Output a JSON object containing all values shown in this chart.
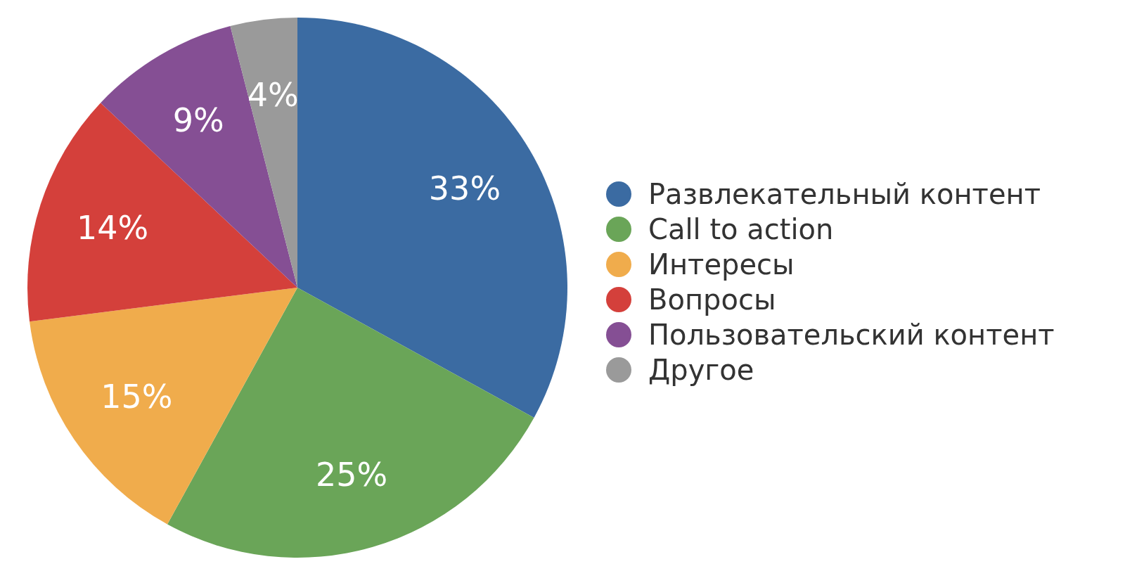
{
  "chart_data": {
    "type": "pie",
    "categories": [
      "Развлекательный контент",
      "Call to action",
      "Интересы",
      "Вопросы",
      "Пользовательский контент",
      "Другое"
    ],
    "values": [
      33,
      25,
      15,
      14,
      9,
      4
    ],
    "colors": [
      "#3b6ba2",
      "#6aa558",
      "#f0ac4c",
      "#d4403b",
      "#854f94",
      "#9a9a9a"
    ],
    "value_labels": [
      "33%",
      "25%",
      "15%",
      "14%",
      "9%",
      "4%"
    ],
    "legend": "right"
  }
}
